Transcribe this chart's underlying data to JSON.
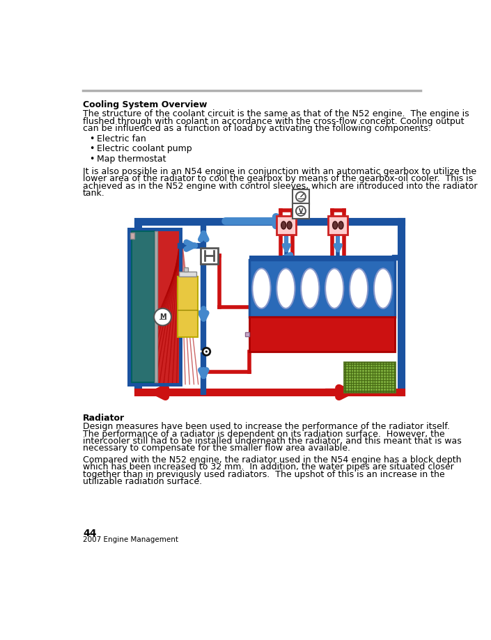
{
  "title": "Cooling System Overview",
  "section2_title": "Radiator",
  "page_number": "44",
  "footer": "2007 Engine Management",
  "bg_color": "#ffffff",
  "header_line_color": "#b0b0b0",
  "text_color": "#000000",
  "body_text1_lines": [
    "The structure of the coolant circuit is the same as that of the N52 engine.  The engine is",
    "flushed through with coolant in accordance with the cross-flow concept. Cooling output",
    "can be influenced as a function of load by activating the following components:"
  ],
  "bullets": [
    "Electric fan",
    "Electric coolant pump",
    "Map thermostat"
  ],
  "body_text2_lines": [
    "It is also possible in an N54 engine in conjunction with an automatic gearbox to utilize the",
    "lower area of the radiator to cool the gearbox by means of the gearbox-oil cooler.  This is",
    "achieved as in the N52 engine with control sleeves, which are introduced into the radiator",
    "tank."
  ],
  "radiator_text1_lines": [
    "Design measures have been used to increase the performance of the radiator itself.",
    "The performance of a radiator is dependent on its radiation surface.  However, the",
    "intercooler still had to be installed underneath the radiator, and this meant that is was",
    "necessary to compensate for the smaller flow area available."
  ],
  "radiator_text2_lines": [
    "Compared with the N52 engine, the radiator used in the N54 engine has a block depth",
    "which has been increased to 32 mm.  In addition, the water pipes are situated closer",
    "together than in previously used radiators.  The upshot of this is an increase in the",
    "utilizable radiation surface."
  ],
  "blue": "#1a52a0",
  "blue_lt": "#4488cc",
  "red": "#cc1111",
  "teal": "#2a7070",
  "teal_lt": "#3a9090",
  "yellow": "#e8c840",
  "green_grid": "#7aaa3a",
  "gray": "#888888",
  "gray_lt": "#cccccc",
  "pink": "#ffaaaa",
  "dark_gray": "#444444"
}
